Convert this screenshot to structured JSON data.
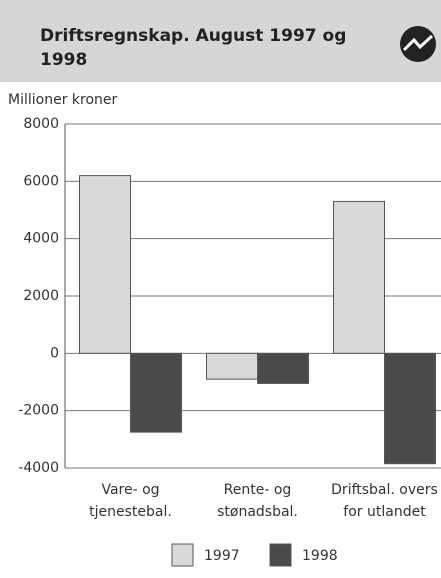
{
  "chart_data": {
    "type": "bar",
    "title": [
      "Driftsregnskap. August 1997 og",
      "1998"
    ],
    "ylabel": "Millioner kroner",
    "categories": [
      [
        "Vare- og",
        "tjenestebal."
      ],
      [
        "Rente- og",
        "stønadsbal."
      ],
      [
        "Driftsbal. overs",
        "for utlandet"
      ]
    ],
    "series": [
      {
        "name": "1997",
        "color": "#d9d9d9",
        "values": [
          6200,
          -900,
          5300
        ]
      },
      {
        "name": "1998",
        "color": "#4a4a4a",
        "values": [
          -2750,
          -1050,
          -3850
        ]
      }
    ],
    "ylim": [
      -4000,
      8000
    ],
    "yticks": [
      -4000,
      -2000,
      0,
      2000,
      4000,
      6000,
      8000
    ],
    "grid": true,
    "legend": "bottom"
  }
}
